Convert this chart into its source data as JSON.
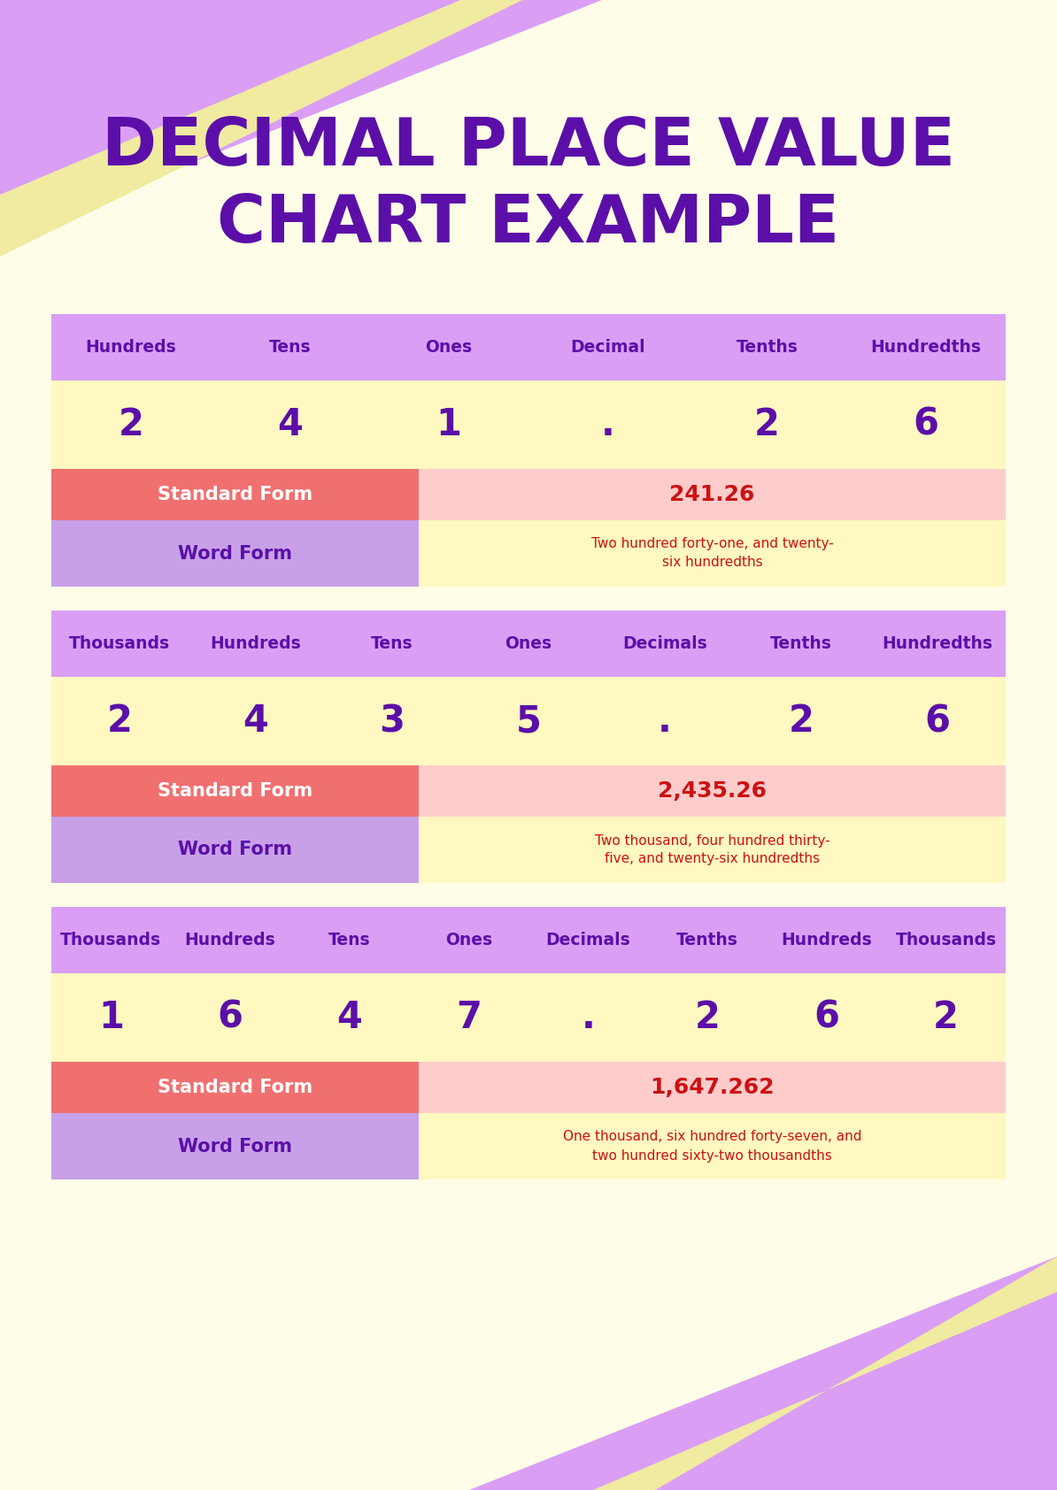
{
  "title_line1": "DECIMAL PLACE VALUE",
  "title_line2": "CHART EXAMPLE",
  "title_color": "#5B0FA8",
  "bg_color": "#FFFDE7",
  "purple_light": "#DA9FF5",
  "yellow_strip": "#F0EBA0",
  "yellow_light": "#FFF8C0",
  "pink_light": "#FFCCCC",
  "salmon": "#F07070",
  "purple_word": "#C8A0E8",
  "text_purple": "#5B0FA8",
  "text_red": "#CC1111",
  "text_white": "#FFFFFF",
  "chart1": {
    "headers": [
      "Hundreds",
      "Tens",
      "Ones",
      "Decimal",
      "Tenths",
      "Hundredths"
    ],
    "values": [
      "2",
      "4",
      "1",
      ".",
      "2",
      "6"
    ],
    "standard_form": "241.26",
    "word_form": "Two hundred forty-one, and twenty-\nsix hundredths"
  },
  "chart2": {
    "headers": [
      "Thousands",
      "Hundreds",
      "Tens",
      "Ones",
      "Decimals",
      "Tenths",
      "Hundredths"
    ],
    "values": [
      "2",
      "4",
      "3",
      "5",
      ".",
      "2",
      "6"
    ],
    "standard_form": "2,435.26",
    "word_form": "Two thousand, four hundred thirty-\nfive, and twenty-six hundredths"
  },
  "chart3": {
    "headers": [
      "Thousands",
      "Hundreds",
      "Tens",
      "Ones",
      "Decimals",
      "Tenths",
      "Hundreds",
      "Thousands"
    ],
    "values": [
      "1",
      "6",
      "4",
      "7",
      ".",
      "2",
      "6",
      "2"
    ],
    "standard_form": "1,647.262",
    "word_form": "One thousand, six hundred forty-seven, and\ntwo hundred sixty-two thousandths"
  }
}
